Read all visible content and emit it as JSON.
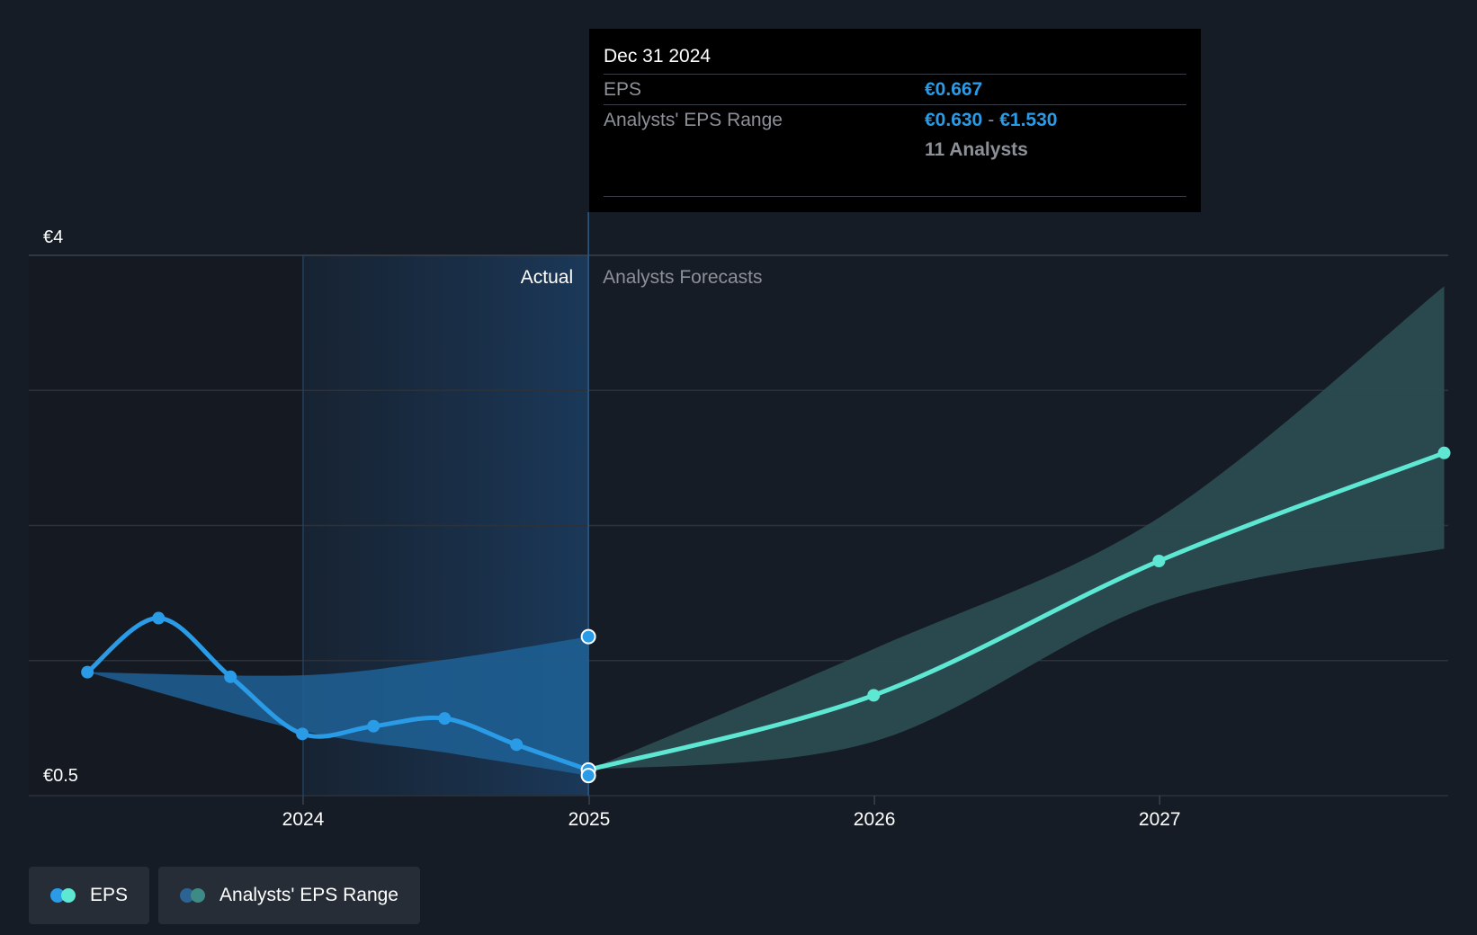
{
  "colors": {
    "background": "#161c25",
    "actual_line": "#2a9be6",
    "forecast_line": "#5ee8d4",
    "actual_band": "#1f6296",
    "forecast_band": "#2b4c51",
    "range_dot": "#2b6392",
    "range_dot2": "#3e8a86",
    "tooltip_value": "#2a9be6"
  },
  "tooltip": {
    "date": "Dec 31 2024",
    "eps_label": "EPS",
    "eps_value": "€0.667",
    "range_label": "Analysts' EPS Range",
    "range_low": "€0.630",
    "range_sep": "-",
    "range_high": "€1.530",
    "analysts": "11 Analysts"
  },
  "region_labels": {
    "actual": "Actual",
    "forecast": "Analysts Forecasts"
  },
  "legend": [
    {
      "label": "EPS",
      "icon": "eps-dots-icon"
    },
    {
      "label": "Analysts' EPS Range",
      "icon": "range-dots-icon"
    }
  ],
  "chart_data": {
    "type": "line",
    "y_tick_labels": [
      "€4",
      "€0.5"
    ],
    "ylim": [
      0.5,
      4
    ],
    "xlim": [
      "2023-04-01",
      "2027-12-01"
    ],
    "x_ticks": [
      {
        "label": "2024",
        "date": "2024-01-01"
      },
      {
        "label": "2025",
        "date": "2025-01-01"
      },
      {
        "label": "2026",
        "date": "2026-01-01"
      },
      {
        "label": "2027",
        "date": "2027-01-01"
      }
    ],
    "grid": true,
    "legend_position": "bottom-left",
    "divider_date": "2024-12-31",
    "highlight_start": "2024-01-01",
    "series": [
      {
        "name": "EPS",
        "role": "actual",
        "points": [
          {
            "x": "2023-03-31",
            "y": 1.3
          },
          {
            "x": "2023-06-30",
            "y": 1.65
          },
          {
            "x": "2023-09-30",
            "y": 1.27
          },
          {
            "x": "2023-12-31",
            "y": 0.9
          },
          {
            "x": "2024-03-31",
            "y": 0.95
          },
          {
            "x": "2024-06-30",
            "y": 1.0
          },
          {
            "x": "2024-09-30",
            "y": 0.83
          },
          {
            "x": "2024-12-31",
            "y": 0.667
          }
        ]
      },
      {
        "name": "EPS",
        "role": "forecast",
        "points": [
          {
            "x": "2024-12-31",
            "y": 0.667
          },
          {
            "x": "2025-12-31",
            "y": 1.15
          },
          {
            "x": "2026-12-31",
            "y": 2.02
          },
          {
            "x": "2027-12-31",
            "y": 2.72
          }
        ]
      }
    ],
    "ranges": [
      {
        "name": "Analysts' EPS Range",
        "role": "actual",
        "points": [
          {
            "x": "2023-03-31",
            "low": 1.3,
            "high": 1.3
          },
          {
            "x": "2023-12-31",
            "low": 0.92,
            "high": 1.28
          },
          {
            "x": "2024-06-30",
            "low": 0.78,
            "high": 1.38
          },
          {
            "x": "2024-12-31",
            "low": 0.63,
            "high": 1.53
          }
        ]
      },
      {
        "name": "Analysts' EPS Range",
        "role": "forecast",
        "points": [
          {
            "x": "2024-12-31",
            "low": 0.667,
            "high": 0.667
          },
          {
            "x": "2025-12-31",
            "low": 0.85,
            "high": 1.45
          },
          {
            "x": "2026-12-31",
            "low": 1.75,
            "high": 2.3
          },
          {
            "x": "2027-12-31",
            "low": 2.1,
            "high": 3.8
          }
        ]
      }
    ],
    "highlight_markers": [
      {
        "x": "2024-12-31",
        "y": 1.53
      },
      {
        "x": "2024-12-31",
        "y": 0.667
      },
      {
        "x": "2024-12-31",
        "y": 0.63
      }
    ]
  }
}
